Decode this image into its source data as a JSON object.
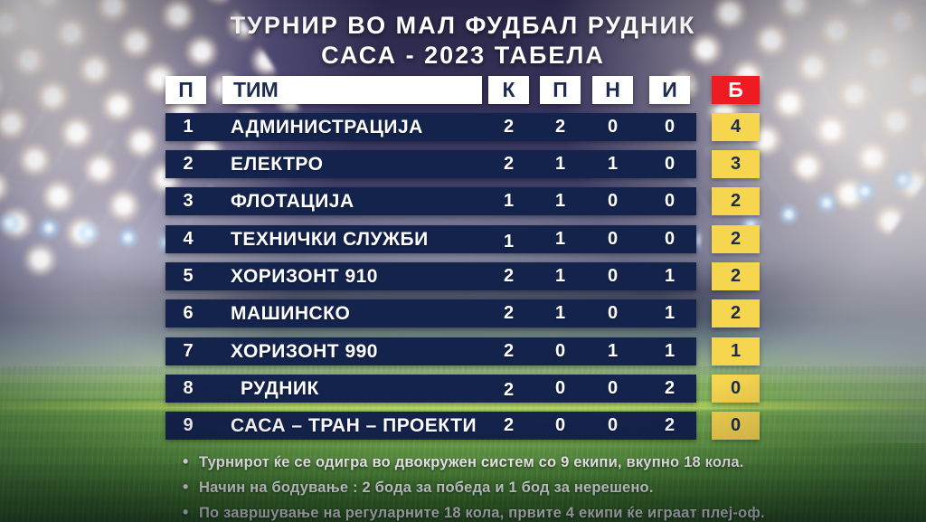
{
  "title": {
    "line1": "ТУРНИР ВО МАЛ ФУДБАЛ РУДНИК",
    "line2": "САСА - 2023 ТАБЕЛА"
  },
  "chart_data": {
    "type": "table",
    "title": "ТУРНИР ВО МАЛ ФУДБАЛ РУДНИК САСА - 2023 ТАБЕЛА",
    "columns": [
      "П",
      "ТИМ",
      "К",
      "П",
      "Н",
      "И",
      "Б"
    ],
    "rows": [
      [
        "1",
        "АДМИНИСТРАЦИЈА",
        "2",
        "2",
        "0",
        "0",
        "4"
      ],
      [
        "2",
        "ЕЛЕКТРО",
        "2",
        "1",
        "1",
        "0",
        "3"
      ],
      [
        "3",
        "ФЛОТАЦИЈА",
        "1",
        "1",
        "0",
        "0",
        "2"
      ],
      [
        "4",
        "ТЕХНИЧКИ СЛУЖБИ",
        "1",
        "1",
        "0",
        "0",
        "2"
      ],
      [
        "5",
        "ХОРИЗОНТ 910",
        "2",
        "1",
        "0",
        "1",
        "2"
      ],
      [
        "6",
        "МАШИНСКО",
        "2",
        "1",
        "0",
        "1",
        "2"
      ],
      [
        "7",
        "ХОРИЗОНТ 990",
        "2",
        "0",
        "1",
        "1",
        "1"
      ],
      [
        "8",
        "РУДНИК",
        "2",
        "0",
        "0",
        "2",
        "0"
      ],
      [
        "9",
        "САСА – ТРАН – ПРОЕКТИ",
        "2",
        "0",
        "0",
        "2",
        "0"
      ]
    ]
  },
  "notes": {
    "bullet": "•",
    "items": [
      "Турнирот ќе се одигра во двокружен систем со 9 екипи, вкупно 18 кола.",
      "Начин на бодување : 2 бода за победа и 1 бод за нерешено.",
      "По завршување на регуларните 18 кола, првите 4 екипи ќе играат плеј-оф."
    ]
  },
  "colors": {
    "row-navy": "#14234C",
    "header-text": "#1C2C50",
    "points-red": "#EE1B22",
    "points-yellow": "#F6D54F",
    "cell-white": "#FFFFFF",
    "text-white": "#FFFFFF"
  }
}
